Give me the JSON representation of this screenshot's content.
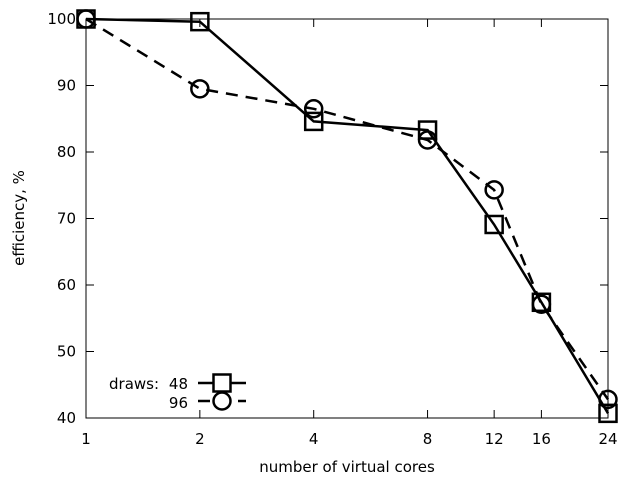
{
  "chart_data": {
    "type": "line",
    "xlabel": "number of virtual cores",
    "ylabel": "efficiency, %",
    "x_scale": "log",
    "xlim": [
      1,
      24
    ],
    "ylim": [
      40,
      100
    ],
    "x_ticks": [
      1,
      2,
      4,
      8,
      12,
      16,
      24
    ],
    "y_ticks": [
      40,
      50,
      60,
      70,
      80,
      90,
      100
    ],
    "grid": false,
    "legend_position": "bottom-left",
    "legend_title": "draws:",
    "series": [
      {
        "name": "48",
        "marker": "square",
        "line_style": "solid",
        "color": "#000000",
        "x": [
          1,
          2,
          4,
          8,
          12,
          16,
          24
        ],
        "y": [
          100,
          99.6,
          84.6,
          83.3,
          69.1,
          57.4,
          40.7
        ]
      },
      {
        "name": "96",
        "marker": "circle",
        "line_style": "dashed",
        "color": "#000000",
        "x": [
          1,
          2,
          4,
          8,
          12,
          16,
          24
        ],
        "y": [
          100,
          89.5,
          86.5,
          81.8,
          74.3,
          57.1,
          42.8
        ]
      }
    ]
  }
}
